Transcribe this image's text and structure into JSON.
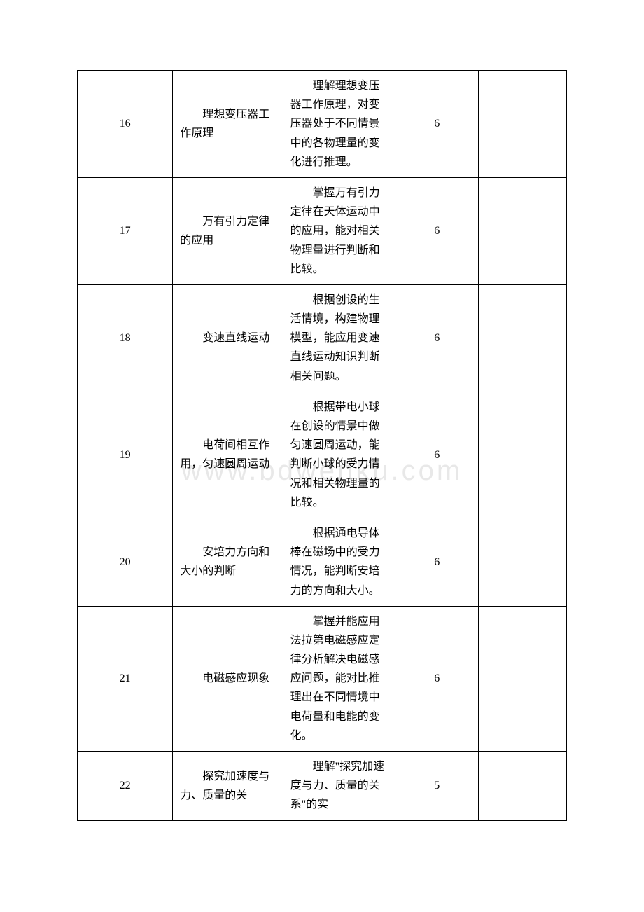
{
  "table": {
    "columns_widths": [
      "19.5%",
      "22.5%",
      "23%",
      "17%",
      "18%"
    ],
    "border_color": "#000000",
    "background_color": "#ffffff",
    "font_size": 16,
    "line_height": 1.7,
    "rows": [
      {
        "num": "16",
        "topic": "理想变压器工作原理",
        "desc": "理解理想变压器工作原理，对变压器处于不同情景中的各物理量的变化进行推理。",
        "score": "6"
      },
      {
        "num": "17",
        "topic": "万有引力定律的应用",
        "desc": "掌握万有引力定律在天体运动中的应用，能对相关物理量进行判断和比较。",
        "score": "6"
      },
      {
        "num": "18",
        "topic": "变速直线运动",
        "desc": "根据创设的生活情境，构建物理模型，能应用变速直线运动知识判断相关问题。",
        "score": "6"
      },
      {
        "num": "19",
        "topic": "电荷间相互作用，匀速圆周运动",
        "desc": "根据带电小球在创设的情景中做匀速圆周运动，能判断小球的受力情况和相关物理量的比较。",
        "score": "6"
      },
      {
        "num": "20",
        "topic": "安培力方向和大小的判断",
        "desc": "根据通电导体棒在磁场中的受力情况，能判断安培力的方向和大小。",
        "score": "6"
      },
      {
        "num": "21",
        "topic": "电磁感应现象",
        "desc": "掌握并能应用法拉第电磁感应定律分析解决电磁感应问题，能对比推理出在不同情境中电荷量和电能的变化。",
        "score": "6"
      },
      {
        "num": "22",
        "topic": "探究加速度与力、质量的关",
        "desc": "理解\"探究加速度与力、质量的关系\"的实",
        "score": "5"
      }
    ]
  },
  "watermark": {
    "text": "www.bdwenku.com",
    "color": "#e8e8e8",
    "fontsize": 40
  }
}
